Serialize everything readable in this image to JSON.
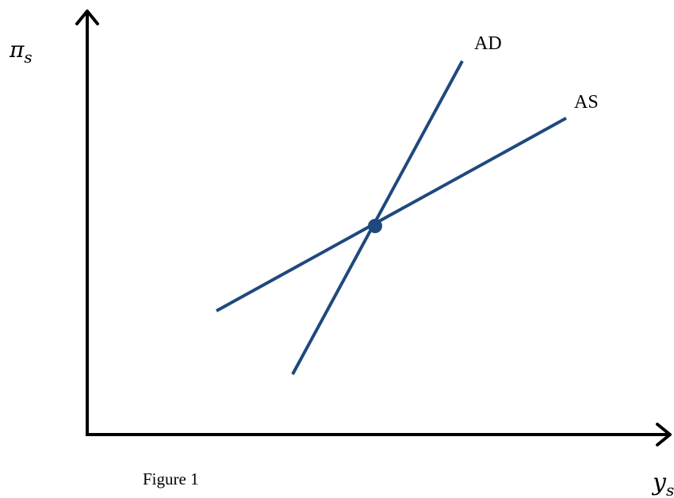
{
  "figure": {
    "caption": "Figure 1",
    "y_axis_variable": {
      "symbol": "π",
      "subscript": "s"
    },
    "x_axis_variable": {
      "symbol": "y",
      "subscript": "s"
    },
    "curves": [
      {
        "id": "ad",
        "label": "AD",
        "color": "#1F497D",
        "slope": "steep"
      },
      {
        "id": "as",
        "label": "AS",
        "color": "#1F497D",
        "slope": "flat"
      }
    ],
    "equilibrium_point": {
      "color": "#1F497D"
    }
  }
}
